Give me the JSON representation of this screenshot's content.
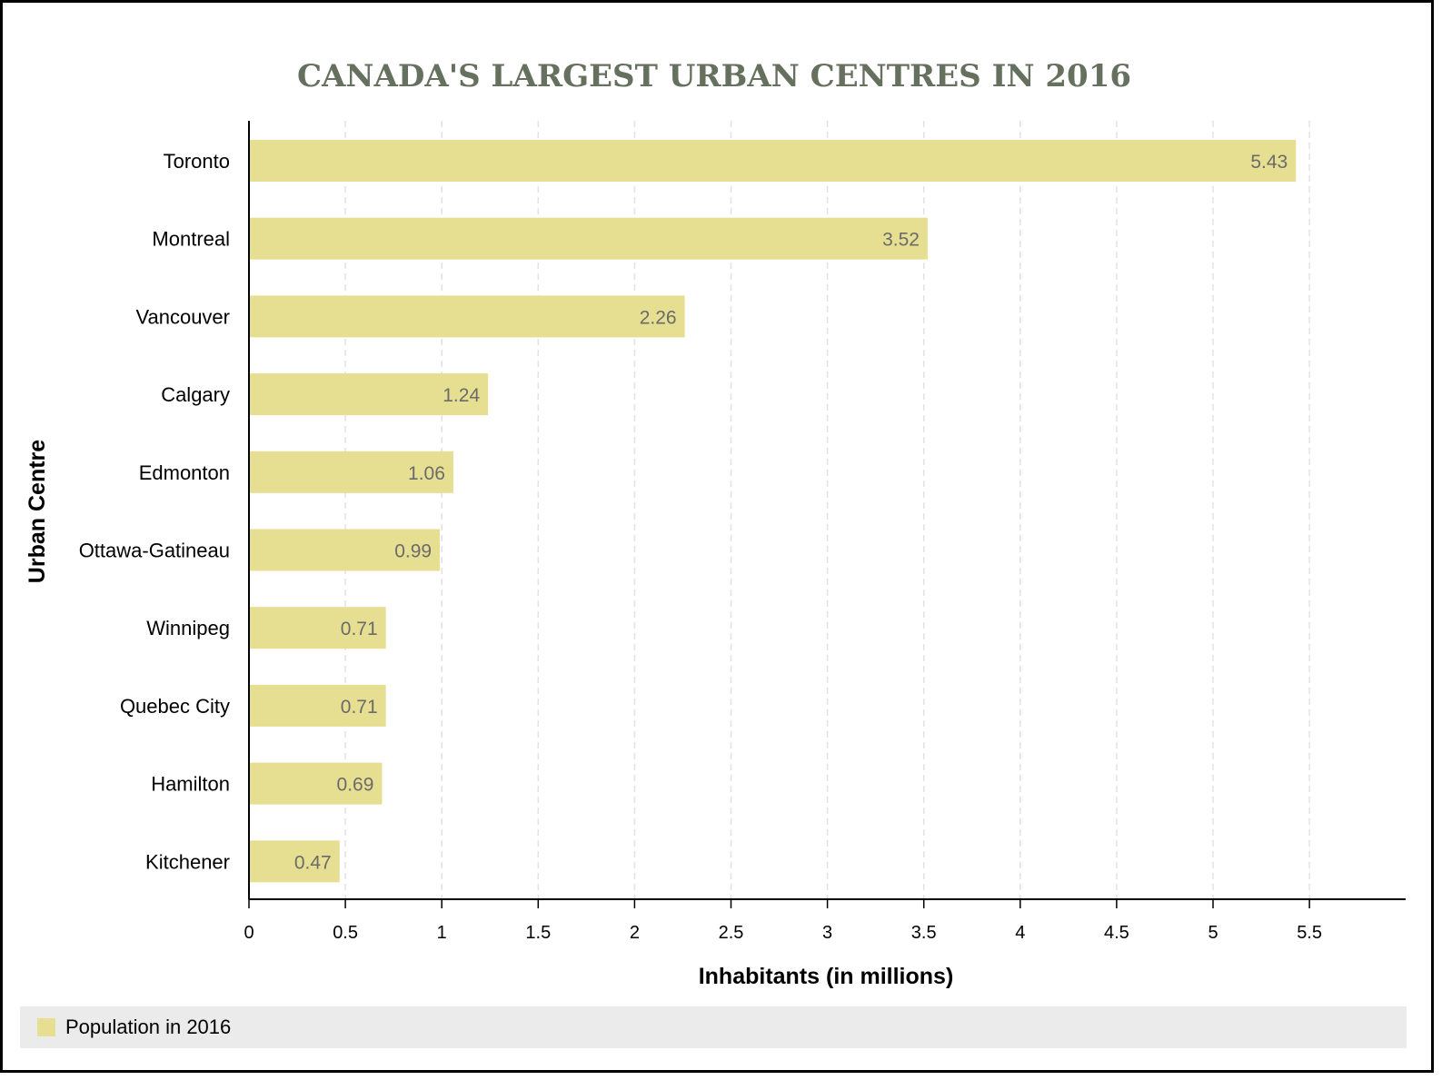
{
  "chart_data": {
    "type": "bar",
    "orientation": "horizontal",
    "title": "CANADA'S LARGEST URBAN CENTRES IN 2016",
    "xlabel": "Inhabitants (in millions)",
    "ylabel": "Urban Centre",
    "categories": [
      "Toronto",
      "Montreal",
      "Vancouver",
      "Calgary",
      "Edmonton",
      "Ottawa-Gatineau",
      "Winnipeg",
      "Quebec City",
      "Hamilton",
      "Kitchener"
    ],
    "series": [
      {
        "name": "Population in 2016",
        "values": [
          5.43,
          3.52,
          2.26,
          1.24,
          1.06,
          0.99,
          0.71,
          0.71,
          0.69,
          0.47
        ],
        "labels": [
          "5.43",
          "3.52",
          "2.26",
          "1.24",
          "1.06",
          "0.99",
          "0.71",
          "0.71",
          "0.69",
          "0.47"
        ]
      }
    ],
    "xlim": [
      0,
      6
    ],
    "xticks": [
      0,
      0.5,
      1,
      1.5,
      2,
      2.5,
      3,
      3.5,
      4,
      4.5,
      5,
      5.5
    ],
    "xtick_labels": [
      "0",
      "0.5",
      "1",
      "1.5",
      "2",
      "2.5",
      "3",
      "3.5",
      "4",
      "4.5",
      "5",
      "5.5"
    ],
    "grid": "vertical dashed",
    "legend_position": "bottom",
    "colors": {
      "bar": "#e6de90",
      "title": "#66705f",
      "value_label": "#6b6b6b",
      "grid": "#e2e2e2",
      "legend_bg": "#ebebeb"
    }
  }
}
